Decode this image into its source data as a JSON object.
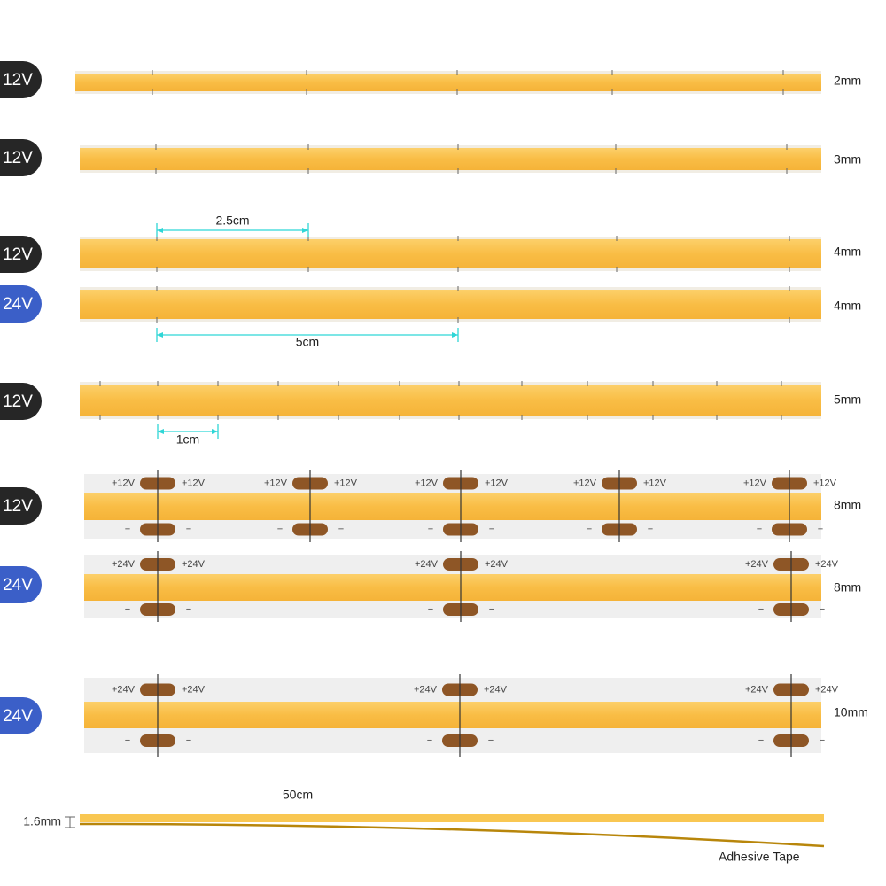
{
  "strips": [
    {
      "voltage": "12V",
      "width": "2mm"
    },
    {
      "voltage": "12V",
      "width": "3mm"
    },
    {
      "voltage": "12V",
      "width": "4mm"
    },
    {
      "voltage": "24V",
      "width": "4mm"
    },
    {
      "voltage": "12V",
      "width": "5mm"
    },
    {
      "voltage": "12V",
      "width": "8mm",
      "pads": {
        "plus": "+12V",
        "minus": "−"
      }
    },
    {
      "voltage": "24V",
      "width": "8mm",
      "pads": {
        "plus": "+24V",
        "minus": "−"
      }
    },
    {
      "voltage": "24V",
      "width": "10mm",
      "pads": {
        "plus": "+24V",
        "minus": "−"
      }
    }
  ],
  "dimensions": [
    {
      "label": "2.5cm"
    },
    {
      "label": "5cm"
    },
    {
      "label": "1cm"
    }
  ],
  "profile": {
    "length": "50cm",
    "thickness": "1.6mm",
    "tape": "Adhesive Tape"
  }
}
